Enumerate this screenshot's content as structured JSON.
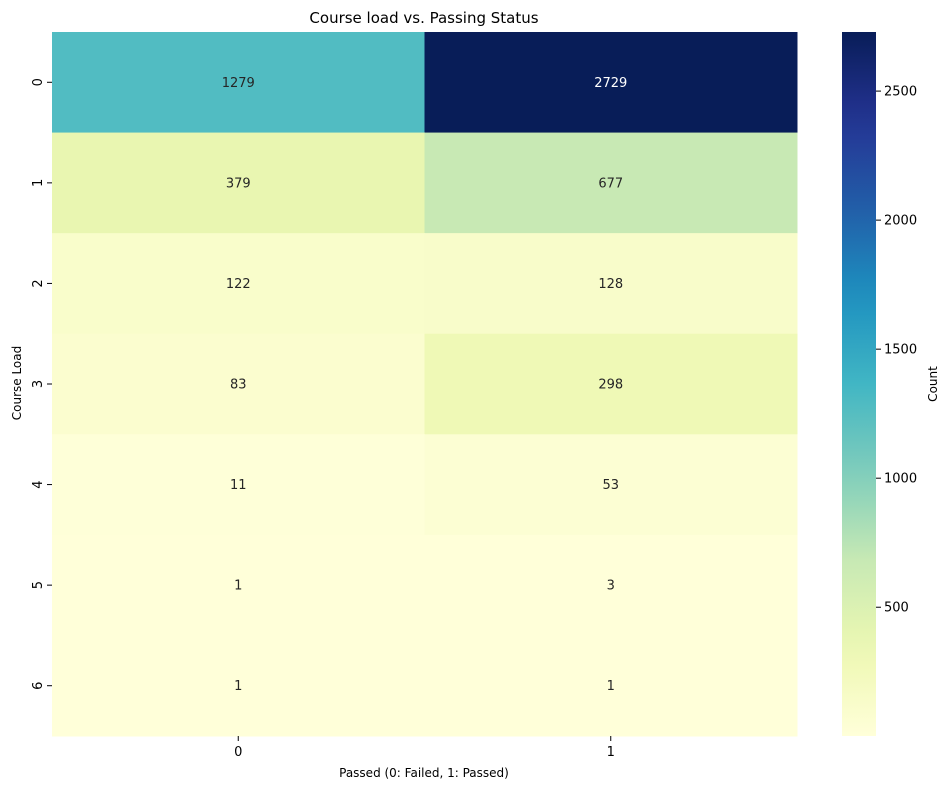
{
  "chart_data": {
    "type": "heatmap",
    "title": "Course load vs. Passing Status",
    "xlabel": "Passed (0: Failed, 1: Passed)",
    "ylabel": "Course Load",
    "x_categories": [
      "0",
      "1"
    ],
    "y_categories": [
      "0",
      "1",
      "2",
      "3",
      "4",
      "5",
      "6"
    ],
    "values": [
      [
        1279,
        2729
      ],
      [
        379,
        677
      ],
      [
        122,
        128
      ],
      [
        83,
        298
      ],
      [
        11,
        53
      ],
      [
        1,
        3
      ],
      [
        1,
        1
      ]
    ],
    "colormap": "YlGnBu",
    "vmin": 1,
    "vmax": 2729,
    "colorbar": {
      "label": "Count",
      "ticks": [
        500,
        1000,
        1500,
        2000,
        2500
      ]
    },
    "annotations": true
  }
}
